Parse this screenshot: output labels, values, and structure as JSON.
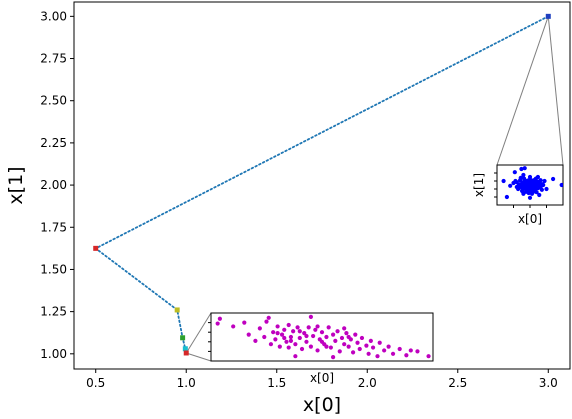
{
  "chart_data": {
    "type": "scatter",
    "xlabel": "x[0]",
    "ylabel": "x[1]",
    "xlim": [
      0.38,
      3.12
    ],
    "ylim": [
      0.91,
      3.085
    ],
    "xticks": [
      0.5,
      1.0,
      1.5,
      2.0,
      2.5,
      3.0
    ],
    "yticks": [
      1.0,
      1.25,
      1.5,
      1.75,
      2.0,
      2.25,
      2.5,
      2.75,
      3.0
    ],
    "xtick_labels": [
      "0.5",
      "1.0",
      "1.5",
      "2.0",
      "2.5",
      "3.0"
    ],
    "ytick_labels": [
      "1.00",
      "1.25",
      "1.50",
      "1.75",
      "2.00",
      "2.25",
      "2.50",
      "2.75",
      "3.00"
    ],
    "grid": false,
    "path": {
      "style": "dotted",
      "color": "#1f77b4",
      "points": [
        {
          "x": 3.0,
          "y": 3.0,
          "color": "#1f3fbf"
        },
        {
          "x": 0.5,
          "y": 1.625,
          "color": "#d62728"
        },
        {
          "x": 0.95,
          "y": 1.26,
          "color": "#bcbd22"
        },
        {
          "x": 0.98,
          "y": 1.095,
          "color": "#2ca02c"
        },
        {
          "x": 0.995,
          "y": 1.03,
          "color": "#17becf"
        },
        {
          "x": 1.0,
          "y": 1.005,
          "color": "#d62728"
        }
      ]
    },
    "insets": [
      {
        "anchor": {
          "x": 3.0,
          "y": 3.0
        },
        "xlabel": "x[0]",
        "ylabel": "x[1]",
        "color": "#0000ff",
        "points": [
          [
            0.52,
            0.5
          ],
          [
            0.41,
            0.47
          ],
          [
            0.6,
            0.55
          ],
          [
            0.55,
            0.38
          ],
          [
            0.45,
            0.6
          ],
          [
            0.35,
            0.52
          ],
          [
            0.62,
            0.42
          ],
          [
            0.5,
            0.7
          ],
          [
            0.48,
            0.3
          ],
          [
            0.38,
            0.35
          ],
          [
            0.66,
            0.62
          ],
          [
            0.3,
            0.45
          ],
          [
            0.57,
            0.63
          ],
          [
            0.43,
            0.4
          ],
          [
            0.53,
            0.28
          ],
          [
            0.7,
            0.5
          ],
          [
            0.25,
            0.55
          ],
          [
            0.4,
            0.75
          ],
          [
            0.6,
            0.32
          ],
          [
            0.47,
            0.55
          ],
          [
            0.55,
            0.5
          ],
          [
            0.5,
            0.45
          ],
          [
            0.35,
            0.62
          ],
          [
            0.64,
            0.48
          ],
          [
            0.44,
            0.5
          ],
          [
            0.58,
            0.58
          ],
          [
            0.32,
            0.4
          ],
          [
            0.68,
            0.38
          ],
          [
            0.5,
            0.6
          ],
          [
            0.46,
            0.36
          ],
          [
            0.2,
            0.48
          ],
          [
            0.72,
            0.6
          ],
          [
            0.4,
            0.28
          ],
          [
            0.62,
            0.7
          ],
          [
            0.28,
            0.6
          ],
          [
            0.53,
            0.4
          ],
          [
            0.48,
            0.52
          ],
          [
            0.56,
            0.45
          ],
          [
            0.42,
            0.62
          ],
          [
            0.36,
            0.46
          ],
          [
            0.65,
            0.55
          ],
          [
            0.51,
            0.35
          ],
          [
            0.59,
            0.66
          ],
          [
            0.45,
            0.44
          ],
          [
            0.39,
            0.56
          ],
          [
            0.54,
            0.58
          ],
          [
            0.61,
            0.46
          ],
          [
            0.33,
            0.5
          ],
          [
            0.49,
            0.42
          ],
          [
            0.57,
            0.52
          ],
          [
            0.43,
            0.58
          ],
          [
            0.52,
            0.62
          ],
          [
            0.38,
            0.42
          ],
          [
            0.66,
            0.44
          ],
          [
            0.47,
            0.48
          ],
          [
            0.55,
            0.33
          ],
          [
            0.41,
            0.66
          ],
          [
            0.62,
            0.58
          ],
          [
            0.3,
            0.57
          ],
          [
            0.5,
            0.52
          ],
          [
            0.58,
            0.4
          ],
          [
            0.44,
            0.33
          ],
          [
            0.36,
            0.68
          ],
          [
            0.53,
            0.55
          ],
          [
            0.48,
            0.62
          ],
          [
            0.69,
            0.52
          ],
          [
            0.4,
            0.5
          ],
          [
            0.56,
            0.6
          ],
          [
            0.46,
            0.42
          ],
          [
            0.6,
            0.5
          ],
          [
            0.15,
            0.2
          ],
          [
            0.98,
            0.5
          ],
          [
            0.37,
            0.9
          ],
          [
            0.75,
            0.4
          ],
          [
            0.5,
            0.18
          ],
          [
            0.27,
            0.82
          ],
          [
            0.85,
            0.65
          ],
          [
            0.1,
            0.6
          ],
          [
            0.42,
            0.92
          ],
          [
            0.64,
            0.25
          ]
        ]
      },
      {
        "anchor": {
          "x": 1.0,
          "y": 1.005
        },
        "xlabel": "x[0]",
        "ylabel": "",
        "color": "#bf00bf",
        "points": [
          [
            0.04,
            0.88
          ],
          [
            0.03,
            0.78
          ],
          [
            0.1,
            0.72
          ],
          [
            0.15,
            0.8
          ],
          [
            0.17,
            0.55
          ],
          [
            0.2,
            0.42
          ],
          [
            0.22,
            0.68
          ],
          [
            0.24,
            0.5
          ],
          [
            0.25,
            0.82
          ],
          [
            0.27,
            0.35
          ],
          [
            0.28,
            0.6
          ],
          [
            0.29,
            0.45
          ],
          [
            0.3,
            0.72
          ],
          [
            0.31,
            0.3
          ],
          [
            0.32,
            0.55
          ],
          [
            0.33,
            0.65
          ],
          [
            0.34,
            0.4
          ],
          [
            0.35,
            0.75
          ],
          [
            0.35,
            0.28
          ],
          [
            0.36,
            0.5
          ],
          [
            0.37,
            0.62
          ],
          [
            0.38,
            0.35
          ],
          [
            0.39,
            0.7
          ],
          [
            0.4,
            0.48
          ],
          [
            0.41,
            0.25
          ],
          [
            0.42,
            0.58
          ],
          [
            0.43,
            0.4
          ],
          [
            0.44,
            0.7
          ],
          [
            0.45,
            0.3
          ],
          [
            0.46,
            0.52
          ],
          [
            0.47,
            0.65
          ],
          [
            0.48,
            0.22
          ],
          [
            0.49,
            0.45
          ],
          [
            0.5,
            0.6
          ],
          [
            0.51,
            0.35
          ],
          [
            0.52,
            0.5
          ],
          [
            0.53,
            0.7
          ],
          [
            0.54,
            0.28
          ],
          [
            0.55,
            0.55
          ],
          [
            0.56,
            0.42
          ],
          [
            0.57,
            0.62
          ],
          [
            0.58,
            0.2
          ],
          [
            0.59,
            0.48
          ],
          [
            0.6,
            0.35
          ],
          [
            0.61,
            0.58
          ],
          [
            0.62,
            0.3
          ],
          [
            0.63,
            0.45
          ],
          [
            0.64,
            0.18
          ],
          [
            0.65,
            0.55
          ],
          [
            0.66,
            0.38
          ],
          [
            0.67,
            0.25
          ],
          [
            0.68,
            0.48
          ],
          [
            0.7,
            0.32
          ],
          [
            0.71,
            0.15
          ],
          [
            0.72,
            0.42
          ],
          [
            0.73,
            0.28
          ],
          [
            0.75,
            0.1
          ],
          [
            0.76,
            0.38
          ],
          [
            0.78,
            0.22
          ],
          [
            0.8,
            0.3
          ],
          [
            0.82,
            0.15
          ],
          [
            0.85,
            0.25
          ],
          [
            0.88,
            0.12
          ],
          [
            0.9,
            0.22
          ],
          [
            0.93,
            0.2
          ],
          [
            0.98,
            0.1
          ],
          [
            0.26,
            0.9
          ],
          [
            0.38,
            0.1
          ],
          [
            0.45,
            0.92
          ],
          [
            0.55,
            0.08
          ],
          [
            0.3,
            0.58
          ],
          [
            0.43,
            0.52
          ],
          [
            0.5,
            0.4
          ],
          [
            0.6,
            0.68
          ],
          [
            0.36,
            0.42
          ],
          [
            0.48,
            0.72
          ],
          [
            0.52,
            0.3
          ],
          [
            0.62,
            0.5
          ],
          [
            0.4,
            0.62
          ],
          [
            0.33,
            0.48
          ]
        ]
      }
    ]
  }
}
